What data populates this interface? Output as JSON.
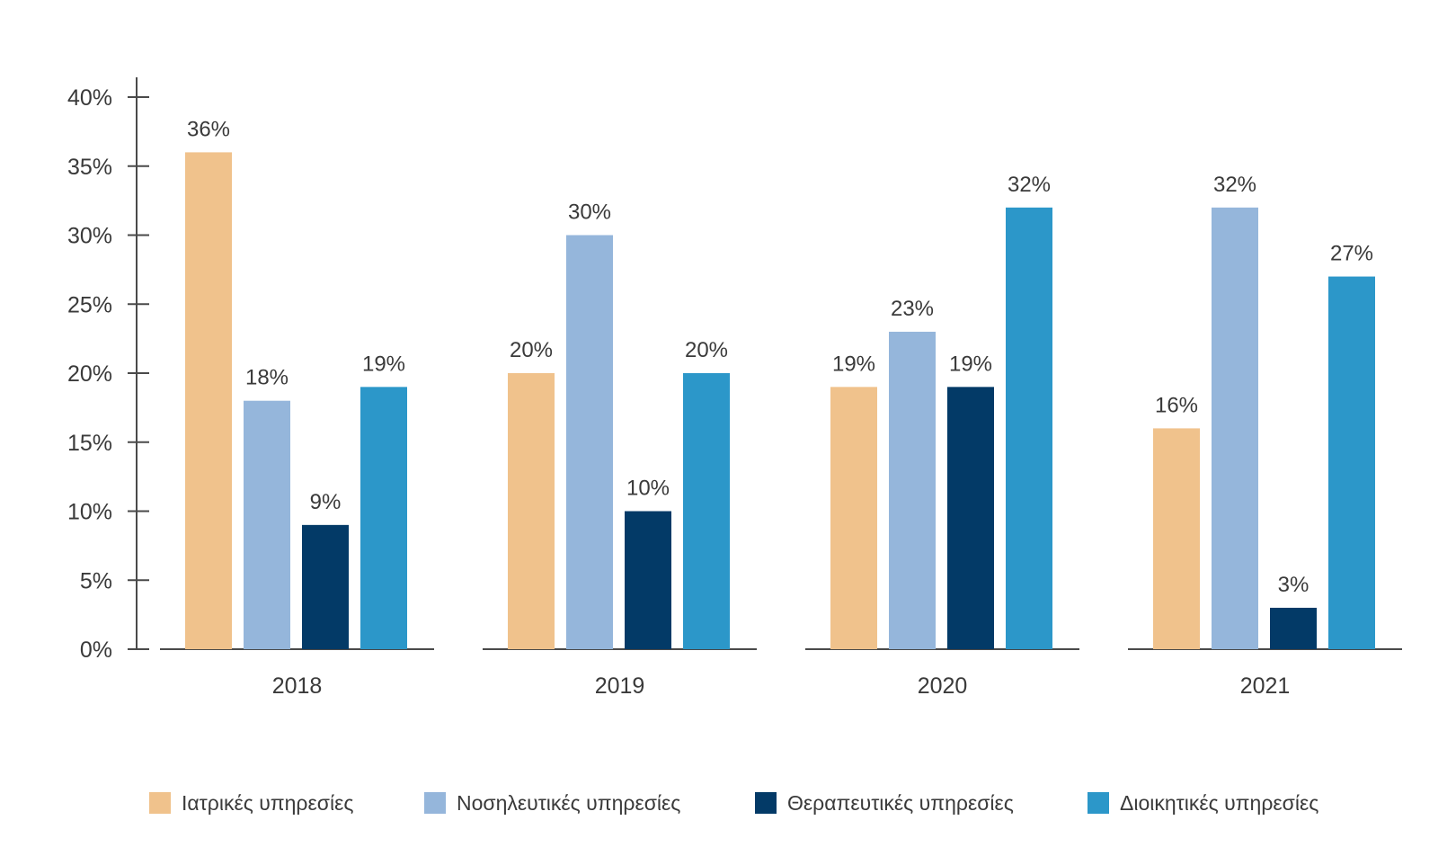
{
  "chart_data": {
    "type": "bar",
    "categories": [
      "2018",
      "2019",
      "2020",
      "2021"
    ],
    "series": [
      {
        "name": "Ιατρικές υπηρεσίες",
        "color": "#F0C28C",
        "values": [
          36,
          20,
          19,
          16
        ],
        "labels": [
          "36%",
          "20%",
          "19%",
          "16%"
        ]
      },
      {
        "name": "Νοσηλευτικές υπηρεσίες",
        "color": "#95B6DB",
        "values": [
          18,
          30,
          23,
          32
        ],
        "labels": [
          "18%",
          "30%",
          "23%",
          "32%"
        ]
      },
      {
        "name": "Θεραπευτικές υπηρεσίες",
        "color": "#033A67",
        "values": [
          9,
          10,
          19,
          3
        ],
        "labels": [
          "9%",
          "10%",
          "19%",
          "3%"
        ]
      },
      {
        "name": "Διοικητικές υπηρεσίες",
        "color": "#2C97C9",
        "values": [
          19,
          20,
          32,
          27
        ],
        "labels": [
          "19%",
          "20%",
          "32%",
          "27%"
        ]
      }
    ],
    "ylim": [
      0,
      40
    ],
    "yticks": [
      0,
      5,
      10,
      15,
      20,
      25,
      30,
      35,
      40
    ],
    "ytick_labels": [
      "0%",
      "5%",
      "10%",
      "15%",
      "20%",
      "25%",
      "30%",
      "35%",
      "40%"
    ],
    "title": "",
    "xlabel": "",
    "ylabel": "",
    "grid": false,
    "legend": "bottom"
  }
}
